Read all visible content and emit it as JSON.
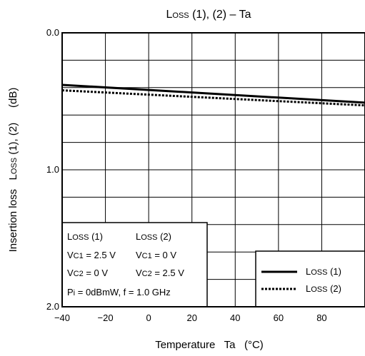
{
  "chart_data": {
    "type": "line",
    "title": {
      "main": "L",
      "sub": "OSS",
      "rest": " (1), (2) – Ta"
    },
    "xlabel": "Temperature   Ta   (°C)",
    "ylabel": {
      "prefix": "Insertion loss   L",
      "sub": "OSS",
      "suffix": " (1), (2)     (dB)"
    },
    "xlim": [
      -40,
      100
    ],
    "ylim": [
      0.0,
      2.0
    ],
    "y_inverted": true,
    "x_ticks": [
      -40,
      -20,
      0,
      20,
      40,
      60,
      80
    ],
    "x_tick_labels": [
      "−40",
      "−20",
      "0",
      "20",
      "40",
      "60",
      "80"
    ],
    "y_tick_labels": [
      {
        "value": 0.0,
        "label": "0.0"
      },
      {
        "value": 1.0,
        "label": "1.0"
      },
      {
        "value": 2.0,
        "label": "2.0"
      }
    ],
    "x_grid_step": 20,
    "y_grid_step": 0.2,
    "grid": true,
    "series": [
      {
        "name": "LOSS (1)",
        "style": "solid",
        "x": [
          -40,
          100
        ],
        "y": [
          0.38,
          0.51
        ]
      },
      {
        "name": "LOSS (2)",
        "style": "dotted",
        "x": [
          -40,
          100
        ],
        "y": [
          0.42,
          0.53
        ]
      }
    ],
    "legend": {
      "position": "bottom-right",
      "entries": [
        {
          "main": "L",
          "sub": "OSS",
          "rest": " (1)",
          "style": "solid"
        },
        {
          "main": "L",
          "sub": "OSS",
          "rest": " (2)",
          "style": "dotted"
        }
      ]
    },
    "conditions": {
      "position": "bottom-left",
      "rows": [
        [
          {
            "main": "L",
            "sub": "OSS",
            "rest": " (1)"
          },
          {
            "main": "L",
            "sub": "OSS",
            "rest": " (2)"
          }
        ],
        [
          {
            "main": "V",
            "sub": "C1",
            "rest": " = 2.5 V"
          },
          {
            "main": "V",
            "sub": "C1",
            "rest": " = 0 V"
          }
        ],
        [
          {
            "main": "V",
            "sub": "C2",
            "rest": " = 0 V"
          },
          {
            "main": "V",
            "sub": "C2",
            "rest": " = 2.5 V"
          }
        ],
        [
          {
            "main": "P",
            "sub": "i",
            "rest": " = 0dBmW, f = 1.0 GHz"
          }
        ]
      ]
    }
  }
}
